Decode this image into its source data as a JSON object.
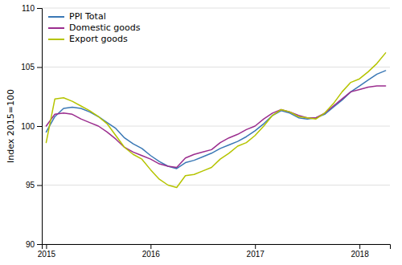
{
  "chart_data": {
    "type": "line",
    "ylabel": "Index 2015=100",
    "categories": [
      "2015",
      null,
      null,
      null,
      null,
      null,
      null,
      null,
      null,
      null,
      null,
      null,
      "2016",
      null,
      null,
      null,
      null,
      null,
      null,
      null,
      null,
      null,
      null,
      null,
      "2017",
      null,
      null,
      null,
      null,
      null,
      null,
      null,
      null,
      null,
      null,
      null,
      "2018",
      null,
      null,
      null
    ],
    "series": [
      {
        "name": "PPI Total",
        "color": "#3a78b5",
        "values": [
          99.5,
          100.8,
          101.5,
          101.6,
          101.5,
          101.2,
          100.8,
          100.3,
          99.8,
          99.0,
          98.5,
          98.1,
          97.5,
          97.0,
          96.6,
          96.4,
          96.9,
          97.1,
          97.4,
          97.7,
          98.1,
          98.4,
          98.7,
          99.1,
          99.6,
          100.2,
          100.9,
          101.3,
          101.1,
          100.7,
          100.6,
          100.7,
          101.0,
          101.6,
          102.2,
          102.9,
          103.4,
          103.9,
          104.4,
          104.7
        ]
      },
      {
        "name": "Domestic goods",
        "color": "#9b2d8e",
        "values": [
          100.0,
          101.0,
          101.1,
          101.0,
          100.6,
          100.3,
          100.0,
          99.5,
          98.9,
          98.2,
          97.8,
          97.5,
          97.2,
          96.8,
          96.6,
          96.5,
          97.3,
          97.6,
          97.8,
          98.0,
          98.6,
          99.0,
          99.3,
          99.7,
          100.0,
          100.6,
          101.1,
          101.4,
          101.2,
          100.9,
          100.7,
          100.7,
          101.1,
          101.7,
          102.3,
          102.9,
          103.1,
          103.3,
          103.4,
          103.4
        ]
      },
      {
        "name": "Export goods",
        "color": "#b5c400",
        "values": [
          98.6,
          102.3,
          102.4,
          102.1,
          101.7,
          101.3,
          100.8,
          100.2,
          99.2,
          98.2,
          97.6,
          97.2,
          96.3,
          95.5,
          95.0,
          94.8,
          95.8,
          95.9,
          96.2,
          96.5,
          97.2,
          97.7,
          98.3,
          98.6,
          99.2,
          100.0,
          100.9,
          101.4,
          101.2,
          100.8,
          100.7,
          100.6,
          101.1,
          101.9,
          102.9,
          103.7,
          104.0,
          104.6,
          105.3,
          106.2
        ]
      }
    ],
    "ylim": [
      90,
      110
    ],
    "yticks": [
      90,
      95,
      100,
      105,
      110
    ],
    "grid": true,
    "legend": "upper left"
  }
}
